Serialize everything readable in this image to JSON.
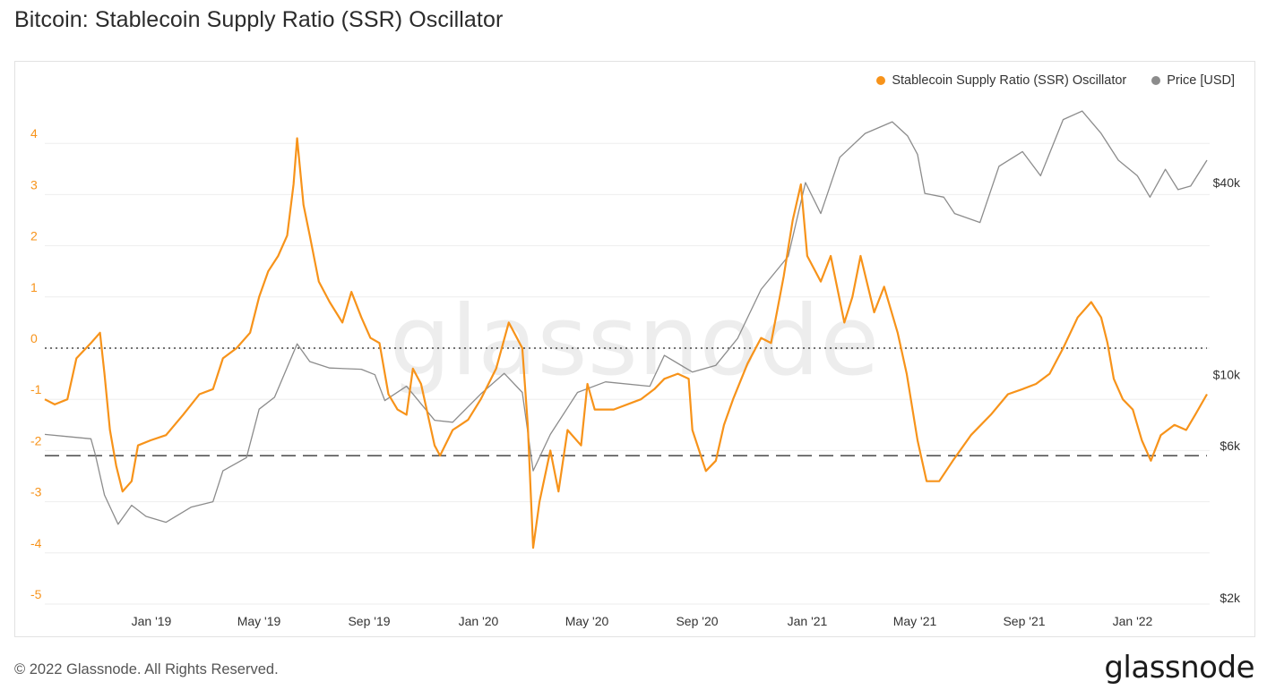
{
  "title": "Bitcoin: Stablecoin Supply Ratio (SSR) Oscillator",
  "footer": "© 2022 Glassnode. All Rights Reserved.",
  "logo": "glassnode",
  "watermark": "glassnode",
  "colors": {
    "ssr": "#f7931a",
    "price": "#8c8c8c",
    "highlight": "#5cf25c"
  },
  "chart_data": {
    "type": "line",
    "title": "Bitcoin: Stablecoin Supply Ratio (SSR) Oscillator",
    "legend_position": "top-right",
    "grid": true,
    "x_ticks": [
      "Jan '19",
      "May '19",
      "Sep '19",
      "Jan '20",
      "May '20",
      "Sep '20",
      "Jan '21",
      "May '21",
      "Sep '21",
      "Jan '22"
    ],
    "x_range": [
      "2018-09-20",
      "2022-03-28"
    ],
    "y_left": {
      "ticks": [
        4,
        3,
        2,
        1,
        0,
        -1,
        -2,
        -3,
        -4,
        -5
      ],
      "range": [
        -5,
        4.5
      ]
    },
    "y_right": {
      "ticks": [
        "$40k",
        "$10k",
        "$6k",
        "$2k"
      ],
      "scale": "log",
      "range": [
        2000,
        65000
      ]
    },
    "reference_lines": [
      {
        "value": 0,
        "style": "dotted"
      },
      {
        "value": -2.1,
        "style": "dashed"
      }
    ],
    "series": [
      {
        "name": "Stablecoin Supply Ratio (SSR) Oscillator",
        "axis": "left",
        "points": [
          [
            "2018-09-20",
            -1.0
          ],
          [
            "2018-10-01",
            -1.1
          ],
          [
            "2018-10-15",
            -1.0
          ],
          [
            "2018-10-25",
            -0.2
          ],
          [
            "2018-11-10",
            0.1
          ],
          [
            "2018-11-20",
            0.3
          ],
          [
            "2018-11-25",
            -0.5
          ],
          [
            "2018-12-01",
            -1.6
          ],
          [
            "2018-12-08",
            -2.3
          ],
          [
            "2018-12-15",
            -2.8
          ],
          [
            "2018-12-25",
            -2.6
          ],
          [
            "2019-01-01",
            -1.9
          ],
          [
            "2019-01-15",
            -1.8
          ],
          [
            "2019-02-01",
            -1.7
          ],
          [
            "2019-02-20",
            -1.3
          ],
          [
            "2019-03-10",
            -0.9
          ],
          [
            "2019-03-25",
            -0.8
          ],
          [
            "2019-04-05",
            -0.2
          ],
          [
            "2019-04-20",
            0.0
          ],
          [
            "2019-05-05",
            0.3
          ],
          [
            "2019-05-15",
            1.0
          ],
          [
            "2019-05-25",
            1.5
          ],
          [
            "2019-06-05",
            1.8
          ],
          [
            "2019-06-15",
            2.2
          ],
          [
            "2019-06-22",
            3.2
          ],
          [
            "2019-06-26",
            4.1
          ],
          [
            "2019-07-03",
            2.8
          ],
          [
            "2019-07-10",
            2.2
          ],
          [
            "2019-07-20",
            1.3
          ],
          [
            "2019-08-01",
            0.9
          ],
          [
            "2019-08-15",
            0.5
          ],
          [
            "2019-08-25",
            1.1
          ],
          [
            "2019-09-05",
            0.6
          ],
          [
            "2019-09-15",
            0.2
          ],
          [
            "2019-09-25",
            0.1
          ],
          [
            "2019-10-05",
            -0.9
          ],
          [
            "2019-10-15",
            -1.2
          ],
          [
            "2019-10-25",
            -1.3
          ],
          [
            "2019-11-01",
            -0.4
          ],
          [
            "2019-11-10",
            -0.7
          ],
          [
            "2019-11-25",
            -1.9
          ],
          [
            "2019-12-01",
            -2.1
          ],
          [
            "2019-12-15",
            -1.6
          ],
          [
            "2020-01-01",
            -1.4
          ],
          [
            "2020-01-15",
            -1.0
          ],
          [
            "2020-02-01",
            -0.4
          ],
          [
            "2020-02-15",
            0.5
          ],
          [
            "2020-03-01",
            0.0
          ],
          [
            "2020-03-07",
            -1.5
          ],
          [
            "2020-03-13",
            -3.9
          ],
          [
            "2020-03-20",
            -3.0
          ],
          [
            "2020-04-01",
            -2.0
          ],
          [
            "2020-04-10",
            -2.8
          ],
          [
            "2020-04-20",
            -1.6
          ],
          [
            "2020-05-05",
            -1.9
          ],
          [
            "2020-05-12",
            -0.7
          ],
          [
            "2020-05-20",
            -1.2
          ],
          [
            "2020-06-10",
            -1.2
          ],
          [
            "2020-07-10",
            -1.0
          ],
          [
            "2020-07-25",
            -0.8
          ],
          [
            "2020-08-05",
            -0.6
          ],
          [
            "2020-08-20",
            -0.5
          ],
          [
            "2020-09-01",
            -0.6
          ],
          [
            "2020-09-05",
            -1.6
          ],
          [
            "2020-09-20",
            -2.4
          ],
          [
            "2020-10-01",
            -2.2
          ],
          [
            "2020-10-10",
            -1.5
          ],
          [
            "2020-10-20",
            -1.0
          ],
          [
            "2020-11-05",
            -0.3
          ],
          [
            "2020-11-20",
            0.2
          ],
          [
            "2020-12-01",
            0.1
          ],
          [
            "2020-12-15",
            1.4
          ],
          [
            "2020-12-25",
            2.5
          ],
          [
            "2021-01-03",
            3.2
          ],
          [
            "2021-01-10",
            1.8
          ],
          [
            "2021-01-25",
            1.3
          ],
          [
            "2021-02-05",
            1.8
          ],
          [
            "2021-02-20",
            0.5
          ],
          [
            "2021-03-01",
            1.0
          ],
          [
            "2021-03-10",
            1.8
          ],
          [
            "2021-03-25",
            0.7
          ],
          [
            "2021-04-05",
            1.2
          ],
          [
            "2021-04-20",
            0.3
          ],
          [
            "2021-04-30",
            -0.5
          ],
          [
            "2021-05-12",
            -1.8
          ],
          [
            "2021-05-22",
            -2.6
          ],
          [
            "2021-06-05",
            -2.6
          ],
          [
            "2021-06-20",
            -2.2
          ],
          [
            "2021-07-10",
            -1.7
          ],
          [
            "2021-08-01",
            -1.3
          ],
          [
            "2021-08-20",
            -0.9
          ],
          [
            "2021-09-05",
            -0.8
          ],
          [
            "2021-09-20",
            -0.7
          ],
          [
            "2021-10-05",
            -0.5
          ],
          [
            "2021-10-20",
            0.0
          ],
          [
            "2021-11-05",
            0.6
          ],
          [
            "2021-11-20",
            0.9
          ],
          [
            "2021-12-01",
            0.6
          ],
          [
            "2021-12-08",
            0.1
          ],
          [
            "2021-12-15",
            -0.6
          ],
          [
            "2021-12-25",
            -1.0
          ],
          [
            "2022-01-05",
            -1.2
          ],
          [
            "2022-01-15",
            -1.8
          ],
          [
            "2022-01-25",
            -2.2
          ],
          [
            "2022-02-05",
            -1.7
          ],
          [
            "2022-02-20",
            -1.5
          ],
          [
            "2022-03-05",
            -1.6
          ],
          [
            "2022-03-15",
            -1.3
          ],
          [
            "2022-03-28",
            -0.9
          ]
        ]
      },
      {
        "name": "Price [USD]",
        "axis": "right",
        "points": [
          [
            "2018-09-20",
            6500
          ],
          [
            "2018-10-15",
            6400
          ],
          [
            "2018-11-10",
            6300
          ],
          [
            "2018-11-15",
            5600
          ],
          [
            "2018-11-25",
            4200
          ],
          [
            "2018-12-10",
            3400
          ],
          [
            "2018-12-25",
            3900
          ],
          [
            "2019-01-10",
            3600
          ],
          [
            "2019-02-01",
            3450
          ],
          [
            "2019-03-01",
            3850
          ],
          [
            "2019-03-25",
            4000
          ],
          [
            "2019-04-05",
            5000
          ],
          [
            "2019-05-01",
            5500
          ],
          [
            "2019-05-15",
            7800
          ],
          [
            "2019-06-01",
            8500
          ],
          [
            "2019-06-26",
            12500
          ],
          [
            "2019-07-10",
            11000
          ],
          [
            "2019-08-01",
            10500
          ],
          [
            "2019-09-05",
            10400
          ],
          [
            "2019-09-20",
            10000
          ],
          [
            "2019-10-01",
            8300
          ],
          [
            "2019-10-25",
            9200
          ],
          [
            "2019-11-25",
            7200
          ],
          [
            "2019-12-15",
            7100
          ],
          [
            "2020-01-15",
            8700
          ],
          [
            "2020-02-10",
            10100
          ],
          [
            "2020-03-01",
            8800
          ],
          [
            "2020-03-13",
            5000
          ],
          [
            "2020-04-01",
            6500
          ],
          [
            "2020-05-01",
            8800
          ],
          [
            "2020-06-01",
            9500
          ],
          [
            "2020-07-20",
            9200
          ],
          [
            "2020-08-05",
            11500
          ],
          [
            "2020-09-05",
            10200
          ],
          [
            "2020-10-01",
            10700
          ],
          [
            "2020-10-25",
            13000
          ],
          [
            "2020-11-20",
            18500
          ],
          [
            "2020-12-20",
            23500
          ],
          [
            "2021-01-08",
            40000
          ],
          [
            "2021-01-25",
            32000
          ],
          [
            "2021-02-15",
            48000
          ],
          [
            "2021-03-15",
            57000
          ],
          [
            "2021-04-14",
            62000
          ],
          [
            "2021-05-01",
            56000
          ],
          [
            "2021-05-12",
            49000
          ],
          [
            "2021-05-20",
            37000
          ],
          [
            "2021-06-10",
            36000
          ],
          [
            "2021-06-22",
            32000
          ],
          [
            "2021-07-20",
            30000
          ],
          [
            "2021-08-10",
            45000
          ],
          [
            "2021-09-05",
            50000
          ],
          [
            "2021-09-25",
            42000
          ],
          [
            "2021-10-20",
            63000
          ],
          [
            "2021-11-10",
            67000
          ],
          [
            "2021-12-01",
            57000
          ],
          [
            "2021-12-20",
            47000
          ],
          [
            "2022-01-10",
            42000
          ],
          [
            "2022-01-24",
            36000
          ],
          [
            "2022-02-10",
            44000
          ],
          [
            "2022-02-24",
            38000
          ],
          [
            "2022-03-10",
            39000
          ],
          [
            "2022-03-28",
            47000
          ]
        ]
      }
    ]
  }
}
